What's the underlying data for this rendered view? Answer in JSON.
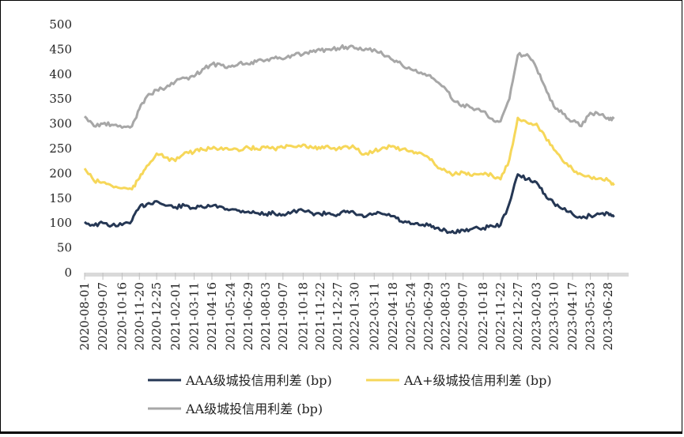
{
  "chart_data": {
    "type": "line",
    "title": "",
    "xlabel": "",
    "ylabel": "",
    "ylim": [
      0,
      500
    ],
    "yticks": [
      0,
      50,
      100,
      150,
      200,
      250,
      300,
      350,
      400,
      450,
      500
    ],
    "xticks": [
      "2020-08-01",
      "2020-09-07",
      "2020-10-16",
      "2020-11-20",
      "2020-12-25",
      "2021-02-01",
      "2021-03-11",
      "2021-04-16",
      "2021-05-24",
      "2021-06-29",
      "2021-08-03",
      "2021-09-07",
      "2021-10-18",
      "2021-11-22",
      "2021-12-27",
      "2022-01-30",
      "2022-03-11",
      "2022-04-18",
      "2022-05-24",
      "2022-06-29",
      "2022-08-03",
      "2022-09-07",
      "2022-10-18",
      "2022-11-22",
      "2022-12-27",
      "2023-02-03",
      "2023-03-10",
      "2023-04-17",
      "2023-05-23",
      "2023-06-28"
    ],
    "grid": false,
    "legend_position": "bottom",
    "series": [
      {
        "name": "AAA级城投信用利差 (bp)",
        "color": "#253754",
        "x": [
          "2020-08-01",
          "2020-08-20",
          "2020-09-07",
          "2020-09-25",
          "2020-10-16",
          "2020-11-05",
          "2020-11-20",
          "2020-12-05",
          "2020-12-25",
          "2021-01-12",
          "2021-02-01",
          "2021-02-20",
          "2021-03-11",
          "2021-03-28",
          "2021-04-16",
          "2021-05-05",
          "2021-05-24",
          "2021-06-10",
          "2021-06-29",
          "2021-07-15",
          "2021-08-03",
          "2021-08-20",
          "2021-09-07",
          "2021-09-25",
          "2021-10-18",
          "2021-11-05",
          "2021-11-22",
          "2021-12-10",
          "2021-12-27",
          "2022-01-12",
          "2022-01-30",
          "2022-02-18",
          "2022-03-11",
          "2022-03-28",
          "2022-04-18",
          "2022-05-05",
          "2022-05-24",
          "2022-06-10",
          "2022-06-29",
          "2022-07-15",
          "2022-08-03",
          "2022-08-20",
          "2022-09-07",
          "2022-09-25",
          "2022-10-18",
          "2022-11-05",
          "2022-11-22",
          "2022-12-10",
          "2022-12-27",
          "2023-01-15",
          "2023-02-03",
          "2023-02-20",
          "2023-03-10",
          "2023-03-28",
          "2023-04-17",
          "2023-05-05",
          "2023-05-23",
          "2023-06-10",
          "2023-06-28",
          "2023-07-10"
        ],
        "values": [
          102,
          95,
          100,
          95,
          96,
          105,
          132,
          138,
          144,
          135,
          132,
          135,
          130,
          132,
          134,
          133,
          127,
          125,
          123,
          120,
          118,
          120,
          117,
          122,
          125,
          120,
          118,
          120,
          117,
          122,
          120,
          112,
          119,
          118,
          114,
          103,
          98,
          96,
          95,
          90,
          85,
          80,
          86,
          88,
          90,
          94,
          96,
          140,
          198,
          188,
          182,
          158,
          140,
          128,
          118,
          110,
          115,
          118,
          120,
          112
        ]
      },
      {
        "name": "AA+级城投信用利差 (bp)",
        "color": "#f6d759",
        "x": [
          "2020-08-01",
          "2020-08-20",
          "2020-09-07",
          "2020-09-25",
          "2020-10-16",
          "2020-11-05",
          "2020-11-20",
          "2020-12-05",
          "2020-12-25",
          "2021-01-12",
          "2021-02-01",
          "2021-02-20",
          "2021-03-11",
          "2021-03-28",
          "2021-04-16",
          "2021-05-05",
          "2021-05-24",
          "2021-06-10",
          "2021-06-29",
          "2021-07-15",
          "2021-08-03",
          "2021-08-20",
          "2021-09-07",
          "2021-09-25",
          "2021-10-18",
          "2021-11-05",
          "2021-11-22",
          "2021-12-10",
          "2021-12-27",
          "2022-01-12",
          "2022-01-30",
          "2022-02-18",
          "2022-03-11",
          "2022-03-28",
          "2022-04-18",
          "2022-05-05",
          "2022-05-24",
          "2022-06-10",
          "2022-06-29",
          "2022-07-15",
          "2022-08-03",
          "2022-08-20",
          "2022-09-07",
          "2022-09-25",
          "2022-10-18",
          "2022-11-05",
          "2022-11-22",
          "2022-12-10",
          "2022-12-27",
          "2023-01-15",
          "2023-02-03",
          "2023-02-20",
          "2023-03-10",
          "2023-03-28",
          "2023-04-17",
          "2023-05-05",
          "2023-05-23",
          "2023-06-10",
          "2023-06-28",
          "2023-07-10"
        ],
        "values": [
          210,
          185,
          182,
          175,
          170,
          168,
          190,
          215,
          240,
          232,
          225,
          242,
          243,
          248,
          250,
          252,
          248,
          245,
          252,
          250,
          252,
          250,
          252,
          255,
          258,
          252,
          250,
          252,
          250,
          255,
          252,
          238,
          245,
          252,
          255,
          248,
          245,
          242,
          232,
          215,
          205,
          198,
          202,
          195,
          198,
          196,
          188,
          228,
          312,
          302,
          300,
          275,
          248,
          225,
          208,
          198,
          192,
          190,
          186,
          176
        ]
      },
      {
        "name": "AA级城投信用利差 (bp)",
        "color": "#a7a7a7",
        "x": [
          "2020-08-01",
          "2020-08-20",
          "2020-09-07",
          "2020-09-25",
          "2020-10-16",
          "2020-11-05",
          "2020-11-20",
          "2020-12-05",
          "2020-12-25",
          "2021-01-12",
          "2021-02-01",
          "2021-02-20",
          "2021-03-11",
          "2021-03-28",
          "2021-04-16",
          "2021-05-05",
          "2021-05-24",
          "2021-06-10",
          "2021-06-29",
          "2021-07-15",
          "2021-08-03",
          "2021-08-20",
          "2021-09-07",
          "2021-09-25",
          "2021-10-18",
          "2021-11-05",
          "2021-11-22",
          "2021-12-10",
          "2021-12-27",
          "2022-01-12",
          "2022-01-30",
          "2022-02-18",
          "2022-03-11",
          "2022-03-28",
          "2022-04-18",
          "2022-05-05",
          "2022-05-24",
          "2022-06-10",
          "2022-06-29",
          "2022-07-15",
          "2022-08-03",
          "2022-08-20",
          "2022-09-07",
          "2022-09-25",
          "2022-10-18",
          "2022-11-05",
          "2022-11-22",
          "2022-12-10",
          "2022-12-27",
          "2023-01-15",
          "2023-02-03",
          "2023-02-20",
          "2023-03-10",
          "2023-03-28",
          "2023-04-17",
          "2023-05-05",
          "2023-05-23",
          "2023-06-10",
          "2023-06-28",
          "2023-07-10"
        ],
        "values": [
          315,
          295,
          300,
          298,
          292,
          295,
          330,
          355,
          368,
          372,
          385,
          392,
          395,
          410,
          420,
          418,
          415,
          422,
          420,
          425,
          428,
          432,
          430,
          438,
          440,
          445,
          448,
          450,
          452,
          455,
          452,
          448,
          450,
          440,
          428,
          420,
          410,
          402,
          398,
          385,
          370,
          345,
          338,
          332,
          325,
          310,
          305,
          350,
          438,
          440,
          412,
          375,
          335,
          320,
          305,
          295,
          322,
          318,
          312,
          310
        ]
      }
    ]
  }
}
